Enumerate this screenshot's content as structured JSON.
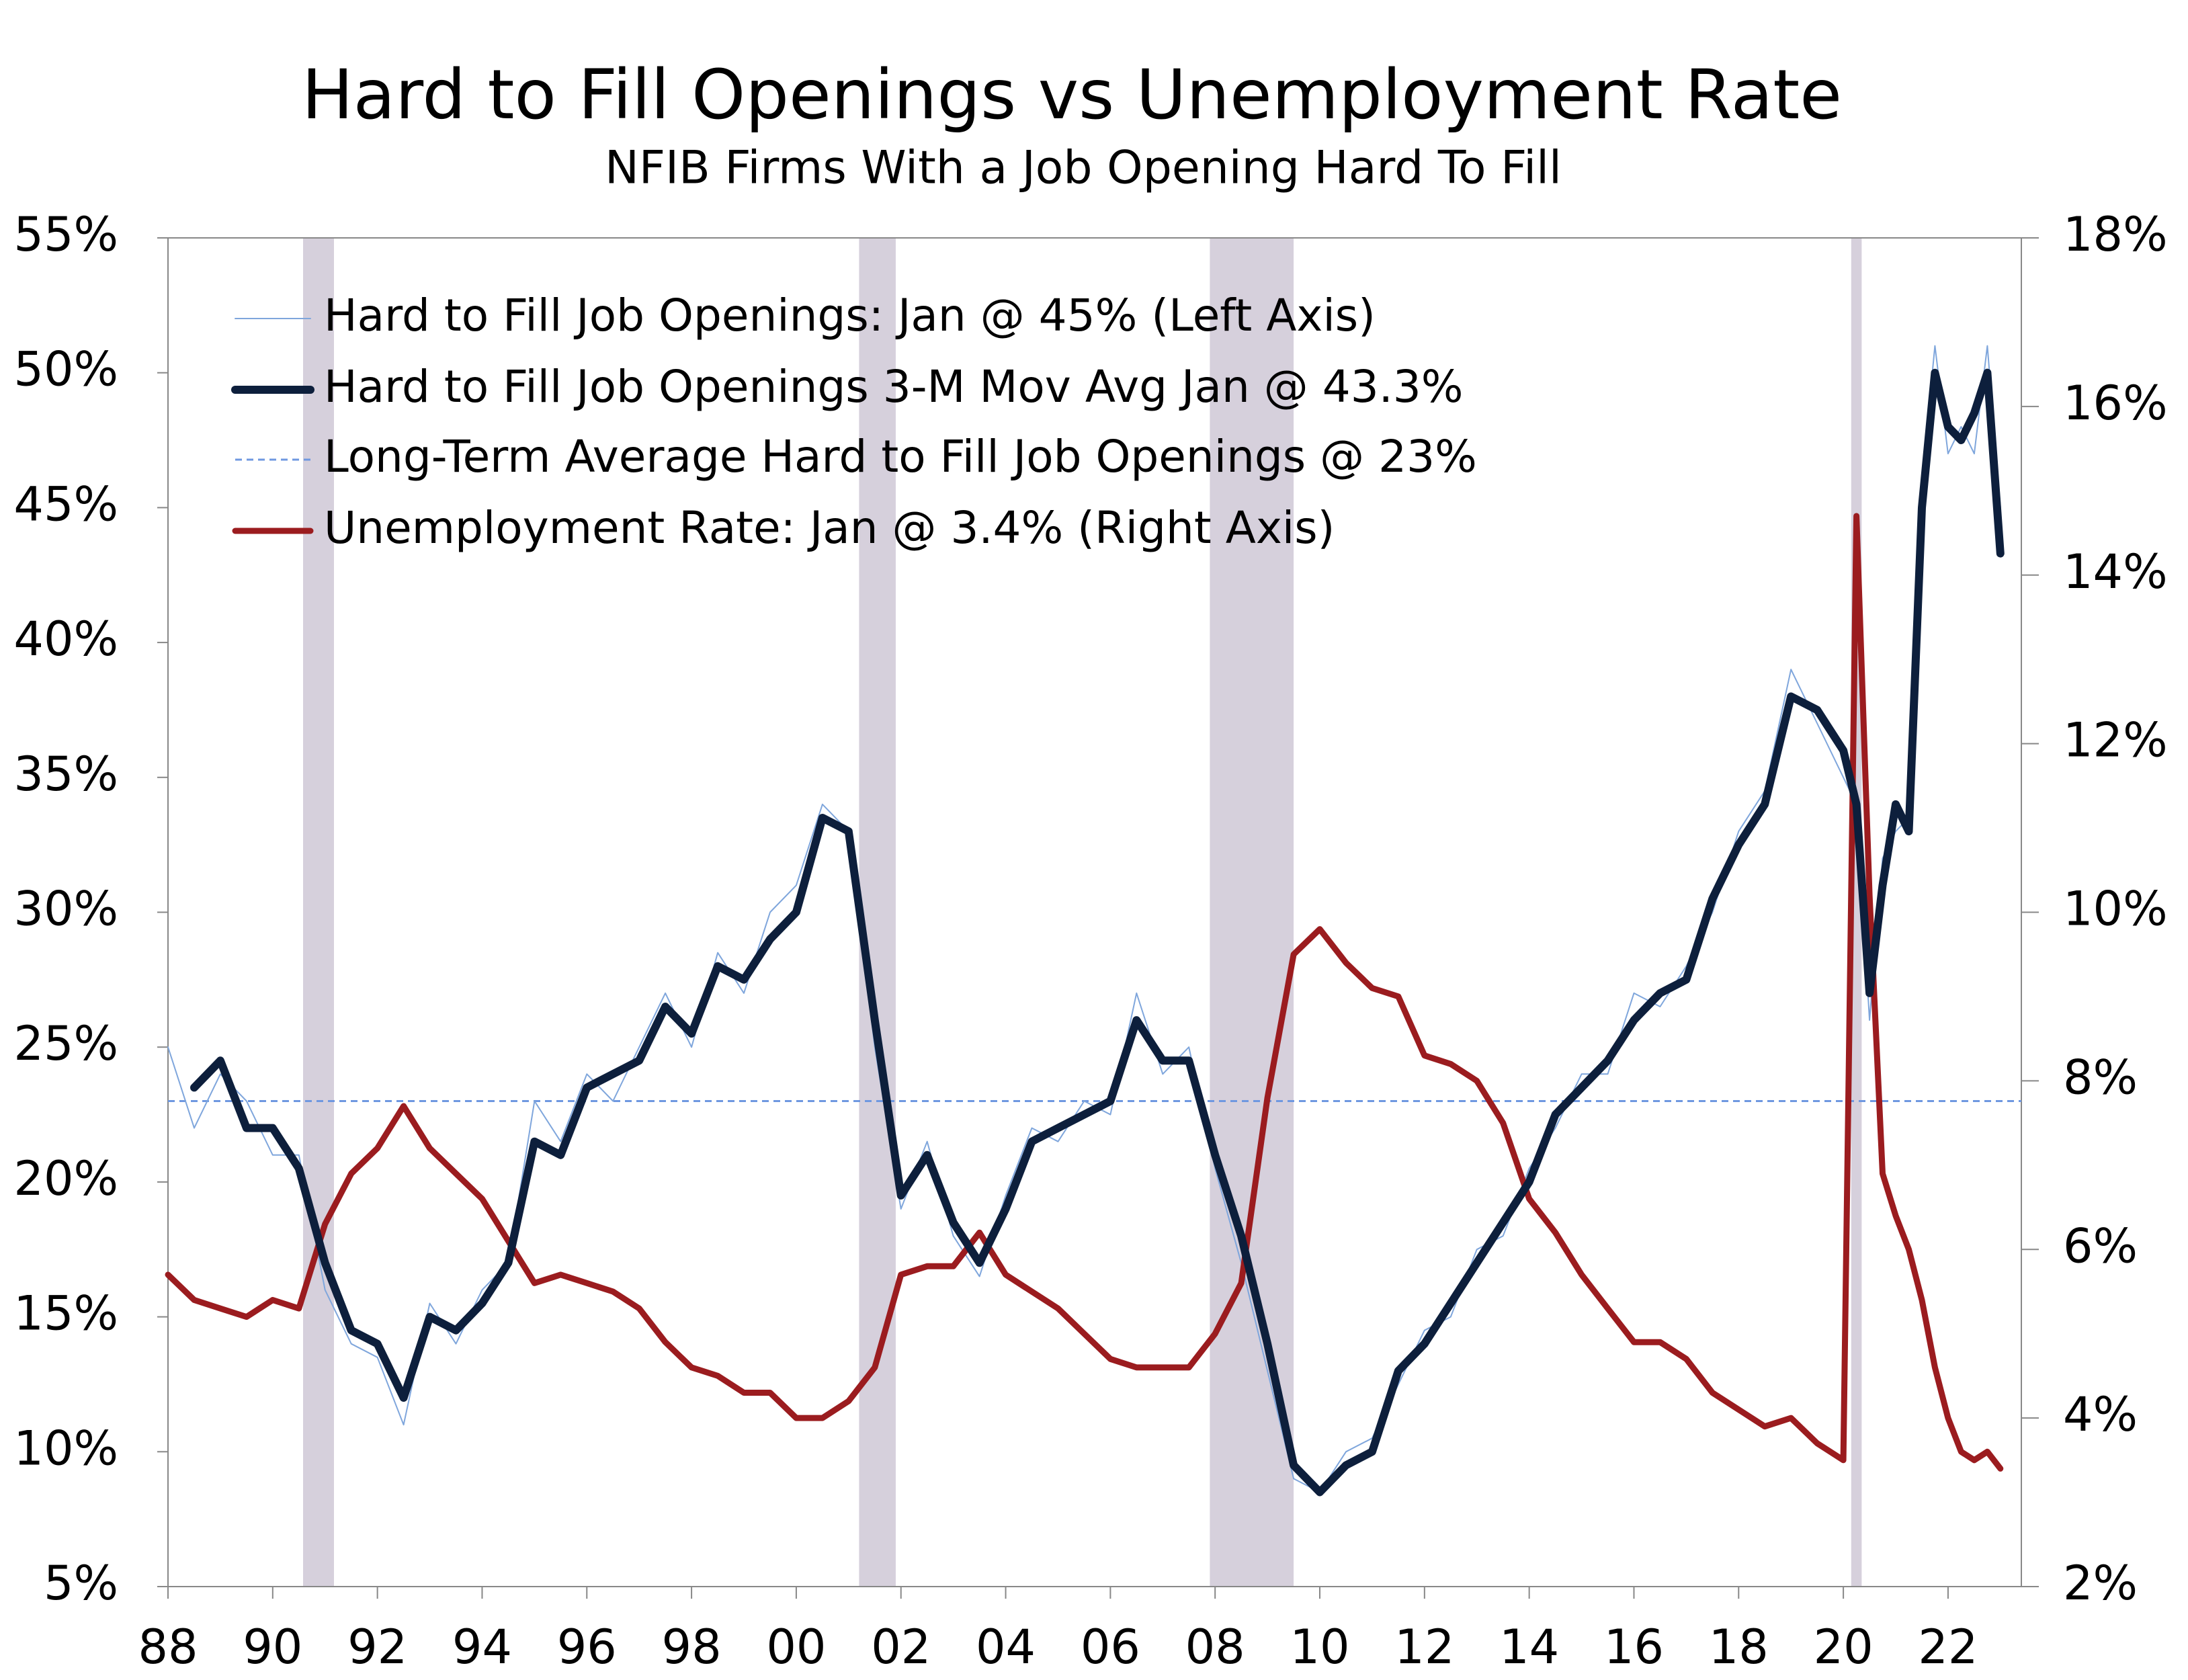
{
  "chart_data": {
    "type": "line",
    "title": "Hard to Fill Openings vs Unemployment Rate",
    "subtitle": "NFIB Firms With a Job Opening Hard To Fill",
    "x": [
      1988,
      1988.5,
      1989,
      1989.5,
      1990,
      1990.5,
      1991,
      1991.5,
      1992,
      1992.5,
      1993,
      1993.5,
      1994,
      1994.5,
      1995,
      1995.5,
      1996,
      1996.5,
      1997,
      1997.5,
      1998,
      1998.5,
      1999,
      1999.5,
      2000,
      2000.5,
      2001,
      2001.5,
      2002,
      2002.5,
      2003,
      2003.5,
      2004,
      2004.5,
      2005,
      2005.5,
      2006,
      2006.5,
      2007,
      2007.5,
      2008,
      2008.5,
      2009,
      2009.5,
      2010,
      2010.5,
      2011,
      2011.5,
      2012,
      2012.5,
      2013,
      2013.5,
      2014,
      2014.5,
      2015,
      2015.5,
      2016,
      2016.5,
      2017,
      2017.5,
      2018,
      2018.5,
      2019,
      2019.5,
      2020,
      2020.25,
      2020.5,
      2020.75,
      2021,
      2021.25,
      2021.5,
      2021.75,
      2022,
      2022.25,
      2022.5,
      2022.75,
      2023
    ],
    "series": [
      {
        "name": "Hard to Fill Job Openings: Jan @ 45% (Left Axis)",
        "color": "#7fa6dc",
        "width": 2,
        "values": [
          25,
          22,
          24,
          23,
          21,
          21,
          16,
          14,
          13.5,
          11,
          15.5,
          14,
          16,
          17,
          23,
          21.5,
          24,
          23,
          25,
          27,
          25,
          28.5,
          27,
          30,
          31,
          34,
          33,
          25,
          19,
          21.5,
          18,
          16.5,
          19.5,
          22,
          21.5,
          23,
          22.5,
          27,
          24,
          25,
          20.5,
          17,
          13,
          9,
          8.5,
          10,
          10.5,
          12.5,
          14.5,
          15,
          17.5,
          18,
          20.5,
          22,
          24,
          24,
          27,
          26.5,
          28,
          30,
          33,
          34.5,
          39,
          37,
          35,
          34,
          26,
          32,
          33,
          33.5,
          46,
          51,
          47,
          48,
          47,
          51,
          45
        ]
      },
      {
        "name": "Unemployment Rate: Jan @ 3.4% (Right Axis)",
        "color": "#9b1c1f",
        "width": 9,
        "axis": "y2",
        "values": [
          5.7,
          5.4,
          5.3,
          5.2,
          5.4,
          5.3,
          6.3,
          6.9,
          7.2,
          7.7,
          7.2,
          6.9,
          6.6,
          6.1,
          5.6,
          5.7,
          5.6,
          5.5,
          5.3,
          4.9,
          4.6,
          4.5,
          4.3,
          4.3,
          4.0,
          4.0,
          4.2,
          4.6,
          5.7,
          5.8,
          5.8,
          6.2,
          5.7,
          5.5,
          5.3,
          5.0,
          4.7,
          4.6,
          4.6,
          4.6,
          5.0,
          5.6,
          7.8,
          9.5,
          9.8,
          9.4,
          9.1,
          9.0,
          8.3,
          8.2,
          8.0,
          7.5,
          6.6,
          6.2,
          5.7,
          5.3,
          4.9,
          4.9,
          4.7,
          4.3,
          4.1,
          3.9,
          4.0,
          3.7,
          3.5,
          14.7,
          10.2,
          6.9,
          6.4,
          6.0,
          5.4,
          4.6,
          4.0,
          3.6,
          3.5,
          3.6,
          3.4
        ]
      },
      {
        "name": "Hard to Fill Job Openings 3-M Mov Avg Jan @ 43.3%",
        "color": "#0d1f3c",
        "width": 12,
        "values": [
          null,
          23.5,
          24.5,
          22,
          22,
          20.5,
          17,
          14.5,
          14,
          12,
          15,
          14.5,
          15.5,
          17,
          21.5,
          21,
          23.5,
          24,
          24.5,
          26.5,
          25.5,
          28,
          27.5,
          29,
          30,
          33.5,
          33,
          26,
          19.5,
          21,
          18.5,
          17,
          19,
          21.5,
          22,
          22.5,
          23,
          26,
          24.5,
          24.5,
          21,
          18,
          14,
          9.5,
          8.5,
          9.5,
          10,
          13,
          14,
          15.5,
          17,
          18.5,
          20,
          22.5,
          23.5,
          24.5,
          26,
          27,
          27.5,
          30.5,
          32.5,
          34,
          38,
          37.5,
          36,
          34,
          27,
          31,
          34,
          33,
          45,
          50,
          48,
          47.5,
          48.5,
          50,
          43.3
        ]
      }
    ],
    "average": {
      "name": "Long-Term Average Hard to Fill Job Openings @ 23%",
      "value": 23,
      "color": "#6f98e0"
    },
    "legend_order": [
      0,
      2,
      "average",
      1
    ],
    "recessions": [
      [
        1990.58,
        1991.17
      ],
      [
        2001.2,
        2001.9
      ],
      [
        2007.9,
        2009.5
      ],
      [
        2020.15,
        2020.35
      ]
    ],
    "recession_color": "#d6d0dc",
    "xlim": [
      1988,
      2023.4
    ],
    "xticks": [
      {
        "value": 1988,
        "label": "88"
      },
      {
        "value": 1990,
        "label": "90"
      },
      {
        "value": 1992,
        "label": "92"
      },
      {
        "value": 1994,
        "label": "94"
      },
      {
        "value": 1996,
        "label": "96"
      },
      {
        "value": 1998,
        "label": "98"
      },
      {
        "value": 2000,
        "label": "00"
      },
      {
        "value": 2002,
        "label": "02"
      },
      {
        "value": 2004,
        "label": "04"
      },
      {
        "value": 2006,
        "label": "06"
      },
      {
        "value": 2008,
        "label": "08"
      },
      {
        "value": 2010,
        "label": "10"
      },
      {
        "value": 2012,
        "label": "12"
      },
      {
        "value": 2014,
        "label": "14"
      },
      {
        "value": 2016,
        "label": "16"
      },
      {
        "value": 2018,
        "label": "18"
      },
      {
        "value": 2020,
        "label": "20"
      },
      {
        "value": 2022,
        "label": "22"
      }
    ],
    "ylim": [
      5,
      55
    ],
    "yticks": [
      {
        "value": 5,
        "label": "5%"
      },
      {
        "value": 10,
        "label": "10%"
      },
      {
        "value": 15,
        "label": "15%"
      },
      {
        "value": 20,
        "label": "20%"
      },
      {
        "value": 25,
        "label": "25%"
      },
      {
        "value": 30,
        "label": "30%"
      },
      {
        "value": 35,
        "label": "35%"
      },
      {
        "value": 40,
        "label": "40%"
      },
      {
        "value": 45,
        "label": "45%"
      },
      {
        "value": 50,
        "label": "50%"
      },
      {
        "value": 55,
        "label": "55%"
      }
    ],
    "y2lim": [
      2,
      18
    ],
    "y2ticks": [
      {
        "value": 2,
        "label": "2%"
      },
      {
        "value": 4,
        "label": "4%"
      },
      {
        "value": 6,
        "label": "6%"
      },
      {
        "value": 8,
        "label": "8%"
      },
      {
        "value": 10,
        "label": "10%"
      },
      {
        "value": 12,
        "label": "12%"
      },
      {
        "value": 14,
        "label": "14%"
      },
      {
        "value": 16,
        "label": "16%"
      },
      {
        "value": 18,
        "label": "18%"
      }
    ]
  }
}
